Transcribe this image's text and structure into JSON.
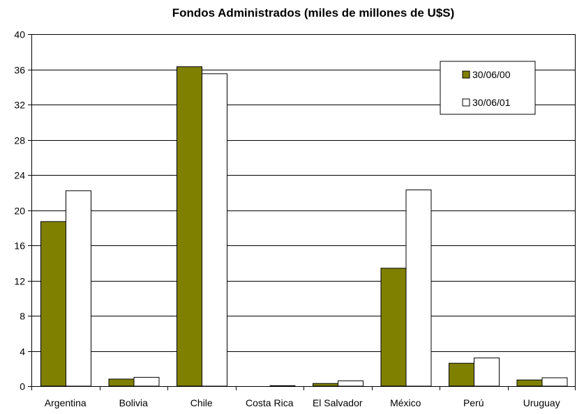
{
  "chart_data": {
    "type": "bar",
    "title": "Fondos Administrados (miles de millones de U$S)",
    "xlabel": "",
    "ylabel": "",
    "ylim": [
      0,
      40
    ],
    "yticks": [
      "0",
      "4",
      "8",
      "12",
      "16",
      "20",
      "24",
      "28",
      "32",
      "36",
      "40"
    ],
    "categories": [
      "Argentina",
      "Bolivia",
      "Chile",
      "Costa Rica",
      "El Salvador",
      "México",
      "Perú",
      "Uruguay"
    ],
    "series": [
      {
        "name": "30/06/00",
        "color": "#808000",
        "values": [
          18.7,
          0.8,
          36.3,
          0.0,
          0.3,
          13.4,
          2.6,
          0.7
        ]
      },
      {
        "name": "30/06/01",
        "color": "#ffffff",
        "values": [
          22.2,
          1.0,
          35.5,
          0.05,
          0.6,
          22.3,
          3.2,
          0.95
        ]
      }
    ],
    "grid": true,
    "legend_position": "top-right"
  }
}
